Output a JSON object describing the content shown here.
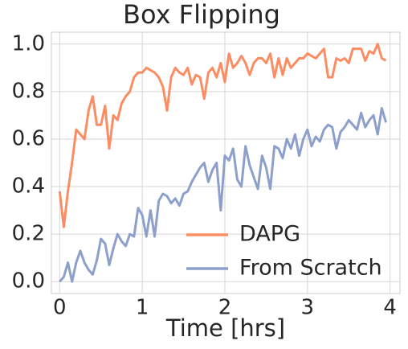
{
  "chart_data": {
    "type": "line",
    "title": "Box Flipping",
    "xlabel": "Time [hrs]",
    "x": [
      0,
      0.05,
      0.1,
      0.15,
      0.2,
      0.25,
      0.3,
      0.35,
      0.4,
      0.45,
      0.5,
      0.55,
      0.6,
      0.65,
      0.7,
      0.75,
      0.8,
      0.85,
      0.9,
      0.95,
      1,
      1.05,
      1.1,
      1.15,
      1.2,
      1.25,
      1.3,
      1.35,
      1.4,
      1.45,
      1.5,
      1.55,
      1.6,
      1.65,
      1.7,
      1.75,
      1.8,
      1.85,
      1.9,
      1.95,
      2,
      2.05,
      2.1,
      2.15,
      2.2,
      2.25,
      2.3,
      2.35,
      2.4,
      2.45,
      2.5,
      2.55,
      2.6,
      2.65,
      2.7,
      2.75,
      2.8,
      2.85,
      2.9,
      2.95,
      3,
      3.05,
      3.1,
      3.15,
      3.2,
      3.25,
      3.3,
      3.35,
      3.4,
      3.45,
      3.5,
      3.55,
      3.6,
      3.65,
      3.7,
      3.75,
      3.8,
      3.85,
      3.9,
      3.95
    ],
    "series": [
      {
        "name": "DAPG",
        "color": "#fc8d62",
        "values": [
          0.38,
          0.23,
          0.38,
          0.5,
          0.64,
          0.62,
          0.6,
          0.72,
          0.78,
          0.66,
          0.66,
          0.74,
          0.56,
          0.7,
          0.68,
          0.75,
          0.78,
          0.8,
          0.86,
          0.88,
          0.88,
          0.9,
          0.89,
          0.88,
          0.86,
          0.82,
          0.72,
          0.86,
          0.9,
          0.88,
          0.87,
          0.9,
          0.83,
          0.87,
          0.86,
          0.77,
          0.88,
          0.9,
          0.86,
          0.92,
          0.84,
          0.96,
          0.9,
          0.92,
          0.95,
          0.92,
          0.87,
          0.92,
          0.94,
          0.94,
          0.92,
          0.96,
          0.86,
          0.94,
          0.87,
          0.94,
          0.9,
          0.92,
          0.94,
          0.94,
          0.96,
          0.95,
          0.94,
          0.96,
          0.98,
          0.86,
          0.86,
          0.94,
          0.93,
          0.94,
          0.92,
          0.98,
          0.98,
          0.98,
          0.93,
          0.97,
          0.96,
          1.0,
          0.94,
          0.93
        ]
      },
      {
        "name": "From Scratch",
        "color": "#8da0cb",
        "values": [
          0.0,
          0.02,
          0.08,
          0.0,
          0.08,
          0.13,
          0.08,
          0.05,
          0.03,
          0.09,
          0.18,
          0.16,
          0.07,
          0.14,
          0.2,
          0.17,
          0.15,
          0.2,
          0.19,
          0.31,
          0.28,
          0.19,
          0.3,
          0.19,
          0.34,
          0.37,
          0.36,
          0.33,
          0.35,
          0.32,
          0.37,
          0.38,
          0.42,
          0.45,
          0.48,
          0.5,
          0.42,
          0.47,
          0.5,
          0.3,
          0.53,
          0.51,
          0.56,
          0.43,
          0.4,
          0.57,
          0.49,
          0.44,
          0.39,
          0.53,
          0.48,
          0.39,
          0.57,
          0.56,
          0.52,
          0.6,
          0.56,
          0.62,
          0.53,
          0.6,
          0.64,
          0.57,
          0.61,
          0.59,
          0.64,
          0.66,
          0.65,
          0.56,
          0.63,
          0.65,
          0.68,
          0.66,
          0.64,
          0.71,
          0.65,
          0.68,
          0.7,
          0.62,
          0.73,
          0.67
        ]
      }
    ],
    "xlim": [
      -0.1,
      4.12
    ],
    "ylim": [
      -0.05,
      1.05
    ],
    "xticks": [
      0,
      1,
      2,
      3,
      4
    ],
    "yticks": [
      {
        "value": 0,
        "label": "0.0"
      },
      0.2,
      0.4,
      0.6,
      0.8,
      {
        "value": 1,
        "label": "1.0"
      }
    ],
    "grid": true,
    "legend": "lower right"
  }
}
